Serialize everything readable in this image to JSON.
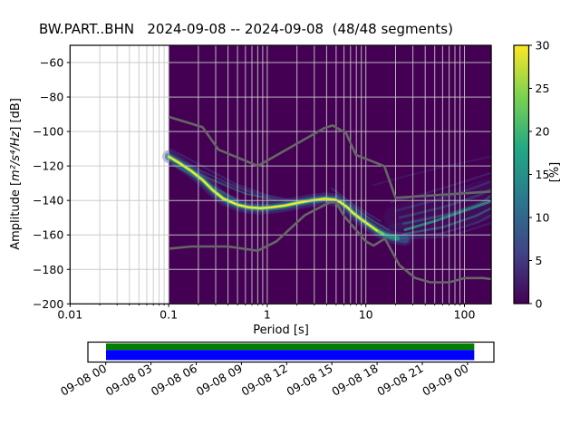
{
  "window_title": "BW.PART..BHN   2024-09-08 -- 2024-09-08  (48/48 segments)",
  "chart_data": {
    "type": "heatmap",
    "title": "BW.PART..BHN   2024-09-08 -- 2024-09-08  (48/48 segments)",
    "station": "BW.PART..BHN",
    "date_range": "2024-09-08 -- 2024-09-08",
    "segments": "48/48 segments",
    "xlabel": "Period [s]",
    "ylabel_prefix": "Amplitude [",
    "ylabel_math": "m²/s⁴/Hz",
    "ylabel_suffix": "] [dB]",
    "xscale": "log",
    "xlim": [
      0.01,
      187
    ],
    "ylim": [
      -200,
      -50
    ],
    "xticks": [
      0.01,
      0.1,
      1,
      10,
      100
    ],
    "xtick_labels": [
      "0.01",
      "0.1",
      "1",
      "10",
      "100"
    ],
    "yticks": [
      -200,
      -180,
      -160,
      -140,
      -120,
      -100,
      -80,
      -60
    ],
    "ytick_labels": [
      "−200",
      "−180",
      "−160",
      "−140",
      "−120",
      "−100",
      "−80",
      "−60"
    ],
    "grid": true,
    "grid_color": "#c8c8c8",
    "histogram_bg_color": "#440154",
    "data_period_range": [
      0.1,
      187
    ],
    "colorbar": {
      "label": "[%]",
      "lim": [
        0,
        30
      ],
      "ticks": [
        0,
        5,
        10,
        15,
        20,
        25,
        30
      ],
      "colormap": "viridis",
      "gradient_stops": [
        "#440154",
        "#414487",
        "#2a788e",
        "#22a884",
        "#7ad151",
        "#fde725"
      ]
    },
    "noise_models": {
      "color": "#666666",
      "width": 2.6,
      "nhnm": [
        [
          0.1,
          -91.5
        ],
        [
          0.22,
          -97.4
        ],
        [
          0.32,
          -110.5
        ],
        [
          0.8,
          -120.0
        ],
        [
          3.8,
          -98.0
        ],
        [
          4.6,
          -96.5
        ],
        [
          6.3,
          -101.0
        ],
        [
          7.9,
          -113.5
        ],
        [
          15.4,
          -120.1
        ],
        [
          20,
          -138.5
        ],
        [
          187,
          -134.8
        ]
      ],
      "nlnm": [
        [
          0.1,
          -168.0
        ],
        [
          0.17,
          -166.7
        ],
        [
          0.4,
          -166.7
        ],
        [
          0.8,
          -169.2
        ],
        [
          1.24,
          -163.7
        ],
        [
          2.4,
          -148.6
        ],
        [
          4.3,
          -141.1
        ],
        [
          5,
          -141.1
        ],
        [
          6,
          -149.0
        ],
        [
          10,
          -163.7
        ],
        [
          12,
          -166.2
        ],
        [
          15.6,
          -162.1
        ],
        [
          21.9,
          -177.5
        ],
        [
          31.6,
          -185.0
        ],
        [
          45,
          -187.5
        ],
        [
          70,
          -187.5
        ],
        [
          101,
          -185.0
        ],
        [
          154,
          -185.0
        ],
        [
          187,
          -185.6
        ]
      ]
    },
    "ppsd_mode_band": {
      "points": [
        [
          0.1,
          -114.5
        ],
        [
          0.13,
          -118.5
        ],
        [
          0.17,
          -123
        ],
        [
          0.22,
          -128
        ],
        [
          0.28,
          -134
        ],
        [
          0.36,
          -139
        ],
        [
          0.5,
          -142.5
        ],
        [
          0.65,
          -144
        ],
        [
          0.85,
          -144.5
        ],
        [
          1.1,
          -144
        ],
        [
          1.5,
          -143
        ],
        [
          2.0,
          -141.5
        ],
        [
          2.8,
          -140
        ],
        [
          3.8,
          -139
        ],
        [
          4.8,
          -139.5
        ],
        [
          5.5,
          -141
        ],
        [
          6.5,
          -144
        ],
        [
          7.5,
          -147.5
        ],
        [
          9,
          -151
        ],
        [
          11,
          -154.5
        ],
        [
          13,
          -157.5
        ],
        [
          15,
          -159.5
        ],
        [
          17.5,
          -161
        ],
        [
          21,
          -162
        ],
        [
          25,
          -162.5
        ]
      ],
      "layers": [
        {
          "color": "#414c8c",
          "width": 14,
          "opacity": 0.4,
          "pmax": 26
        },
        {
          "color": "#2d6a8e",
          "width": 8.5,
          "opacity": 0.55,
          "pmax": 25
        },
        {
          "color": "#21a181",
          "width": 5,
          "opacity": 0.8,
          "pmax": 22
        },
        {
          "color": "#78cf51",
          "width": 3,
          "opacity": 0.95,
          "pmax": 16
        },
        {
          "color": "#fde725",
          "width": 2,
          "opacity": 1.0,
          "pmax": 13.5
        }
      ]
    },
    "ppsd_streaks": [
      {
        "points": [
          [
            0.105,
            -110.5
          ],
          [
            0.15,
            -115
          ],
          [
            0.25,
            -122
          ],
          [
            0.5,
            -131
          ],
          [
            1.0,
            -137
          ],
          [
            2.0,
            -140.5
          ]
        ],
        "color": "#3f5a9e",
        "width": 2.2,
        "opacity": 0.35
      },
      {
        "points": [
          [
            0.12,
            -116
          ],
          [
            0.2,
            -122
          ],
          [
            0.4,
            -130
          ],
          [
            0.8,
            -137
          ],
          [
            1.6,
            -140.5
          ]
        ],
        "color": "#3c6390",
        "width": 2.2,
        "opacity": 0.4
      },
      {
        "points": [
          [
            0.15,
            -121
          ],
          [
            0.3,
            -129
          ],
          [
            0.6,
            -136
          ],
          [
            1.2,
            -140
          ]
        ],
        "color": "#2f8c8a",
        "width": 2.0,
        "opacity": 0.5
      },
      {
        "points": [
          [
            0.11,
            -119
          ],
          [
            0.18,
            -126
          ],
          [
            0.3,
            -133
          ],
          [
            0.5,
            -140
          ]
        ],
        "color": "#28a383",
        "width": 2.0,
        "opacity": 0.6
      },
      {
        "points": [
          [
            0.25,
            -127
          ],
          [
            0.6,
            -134
          ],
          [
            1.4,
            -139.5
          ],
          [
            2.8,
            -141
          ]
        ],
        "color": "#3b528b",
        "width": 2.0,
        "opacity": 0.3
      },
      {
        "points": [
          [
            4.5,
            -133
          ],
          [
            7,
            -141
          ],
          [
            10,
            -147
          ],
          [
            14,
            -152
          ]
        ],
        "color": "#33638d",
        "width": 2.0,
        "opacity": 0.4
      },
      {
        "points": [
          [
            5,
            -137
          ],
          [
            8,
            -145
          ],
          [
            12,
            -152
          ],
          [
            17,
            -157
          ]
        ],
        "color": "#2a9d8f",
        "width": 2.0,
        "opacity": 0.45
      },
      {
        "points": [
          [
            12,
            -131
          ],
          [
            25,
            -126
          ],
          [
            60,
            -120.5
          ],
          [
            187,
            -114.5
          ]
        ],
        "color": "#4457a0",
        "width": 2.0,
        "opacity": 0.22
      },
      {
        "points": [
          [
            18,
            -141
          ],
          [
            40,
            -136
          ],
          [
            100,
            -129
          ],
          [
            187,
            -124
          ]
        ],
        "color": "#4457a0",
        "width": 2.2,
        "opacity": 0.3
      },
      {
        "points": [
          [
            20,
            -146
          ],
          [
            50,
            -140
          ],
          [
            120,
            -133
          ],
          [
            187,
            -129
          ]
        ],
        "color": "#3e5c9e",
        "width": 2.4,
        "opacity": 0.35
      },
      {
        "points": [
          [
            22,
            -150
          ],
          [
            60,
            -144
          ],
          [
            140,
            -137
          ],
          [
            187,
            -133.5
          ]
        ],
        "color": "#38678d",
        "width": 2.6,
        "opacity": 0.45
      },
      {
        "points": [
          [
            24,
            -153.5
          ],
          [
            70,
            -148
          ],
          [
            150,
            -141.5
          ],
          [
            187,
            -137
          ]
        ],
        "color": "#31798e",
        "width": 2.6,
        "opacity": 0.5
      },
      {
        "points": [
          [
            25,
            -157
          ],
          [
            50,
            -152
          ],
          [
            100,
            -146
          ],
          [
            187,
            -140.5
          ]
        ],
        "color": "#27a486",
        "width": 2.8,
        "opacity": 0.8
      },
      {
        "points": [
          [
            24,
            -159.5
          ],
          [
            60,
            -155.5
          ],
          [
            130,
            -149
          ],
          [
            187,
            -144.5
          ]
        ],
        "color": "#2f8f8b",
        "width": 2.4,
        "opacity": 0.55
      },
      {
        "points": [
          [
            22,
            -161.5
          ],
          [
            60,
            -159
          ],
          [
            140,
            -152.5
          ],
          [
            187,
            -148.5
          ]
        ],
        "color": "#3a5c8f",
        "width": 2.4,
        "opacity": 0.45
      },
      {
        "points": [
          [
            20,
            -162.5
          ],
          [
            70,
            -161
          ],
          [
            187,
            -153
          ]
        ],
        "color": "#414487",
        "width": 2.2,
        "opacity": 0.4
      },
      {
        "points": [
          [
            20,
            -150
          ],
          [
            187,
            -134
          ]
        ],
        "color": "#365c8d",
        "width": 26,
        "opacity": 0.12
      },
      {
        "points": [
          [
            20,
            -158
          ],
          [
            187,
            -146
          ]
        ],
        "color": "#365c8d",
        "width": 18,
        "opacity": 0.14
      }
    ]
  },
  "timeline": {
    "tick_labels": [
      "09-08 00",
      "09-08 03",
      "09-08 06",
      "09-08 09",
      "09-08 12",
      "09-08 15",
      "09-08 18",
      "09-08 21",
      "09-09 00"
    ],
    "coverage_bars": [
      {
        "name": "coverage-bar-green",
        "color": "#008000"
      },
      {
        "name": "coverage-bar-blue",
        "color": "#0000ff"
      }
    ]
  }
}
